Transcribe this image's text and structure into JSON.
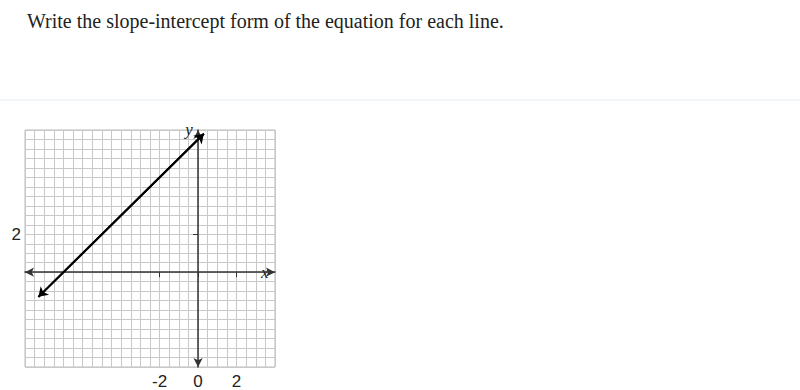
{
  "chart_data": {
    "type": "line",
    "title": "Write the slope-intercept form of the equation for each line.",
    "x_label": "x",
    "y_label": "y",
    "x": [
      -8.3,
      0.3
    ],
    "values": [
      -1.3,
      7.3
    ],
    "color": "#000000",
    "xlim": [
      -9,
      4
    ],
    "ylim": [
      -5,
      7.5
    ],
    "xticks": [
      -2,
      0,
      2
    ],
    "yticks": [
      2
    ],
    "grid": true
  }
}
